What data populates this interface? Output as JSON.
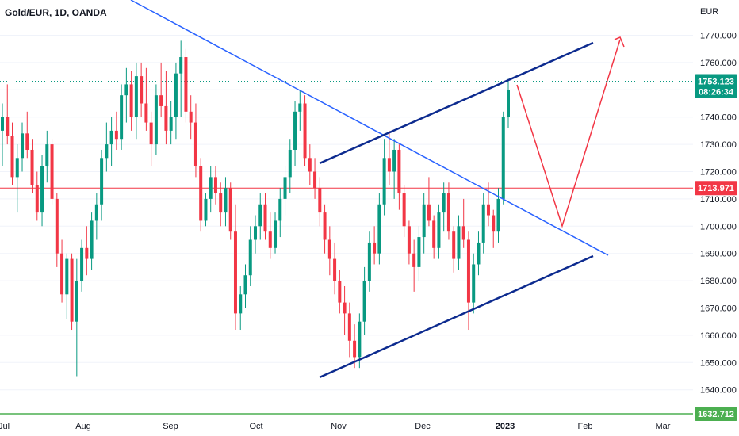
{
  "symbol_title": "Gold/EUR, 1D, OANDA",
  "currency": "EUR",
  "colors": {
    "up": "#089981",
    "down": "#f23645",
    "trendline": "#0d2b8f",
    "trendline_light": "#2962ff",
    "projection": "#f23645",
    "current_price_line": "#089981",
    "support_line": "#f23645",
    "bottom_line": "#4caf50",
    "text": "#131722",
    "grid": "#f0f3fa"
  },
  "price_tags": {
    "current_price": "1753.123",
    "countdown": "08:26:34",
    "support_price": "1713.971",
    "bottom_price": "1632.712"
  },
  "chart_data": {
    "type": "candlestick",
    "title": "Gold/EUR, 1D, OANDA",
    "ylabel": "EUR",
    "ylim": [
      1636,
      1779
    ],
    "y_ticks": [
      "1640.000",
      "1650.000",
      "1660.000",
      "1670.000",
      "1680.000",
      "1690.000",
      "1700.000",
      "1710.000",
      "1720.000",
      "1730.000",
      "1740.000",
      "1750.000",
      "1760.000",
      "1770.000"
    ],
    "x_ticks": [
      "Jul",
      "Aug",
      "Sep",
      "Oct",
      "Nov",
      "Dec",
      "2023",
      "Feb",
      "Mar"
    ],
    "current_price": 1753.123,
    "horizontal_lines": [
      {
        "label": "1713.971",
        "value": 1713.971
      },
      {
        "label": "1632.712",
        "value": 1632.712
      }
    ],
    "candles": [
      [
        1735,
        1745,
        1722,
        1740
      ],
      [
        1740,
        1752,
        1730,
        1733
      ],
      [
        1733,
        1738,
        1715,
        1718
      ],
      [
        1718,
        1730,
        1705,
        1725
      ],
      [
        1725,
        1738,
        1720,
        1734
      ],
      [
        1734,
        1742,
        1725,
        1728
      ],
      [
        1728,
        1732,
        1712,
        1715
      ],
      [
        1715,
        1720,
        1702,
        1705
      ],
      [
        1705,
        1726,
        1700,
        1722
      ],
      [
        1722,
        1735,
        1716,
        1730
      ],
      [
        1730,
        1732,
        1708,
        1710
      ],
      [
        1710,
        1712,
        1685,
        1690
      ],
      [
        1690,
        1695,
        1672,
        1675
      ],
      [
        1675,
        1690,
        1666,
        1688
      ],
      [
        1688,
        1690,
        1662,
        1665
      ],
      [
        1665,
        1688,
        1645,
        1680
      ],
      [
        1680,
        1695,
        1676,
        1692
      ],
      [
        1692,
        1700,
        1682,
        1688
      ],
      [
        1688,
        1705,
        1684,
        1702
      ],
      [
        1702,
        1712,
        1695,
        1708
      ],
      [
        1708,
        1728,
        1702,
        1725
      ],
      [
        1725,
        1738,
        1720,
        1730
      ],
      [
        1730,
        1740,
        1722,
        1735
      ],
      [
        1735,
        1742,
        1728,
        1732
      ],
      [
        1732,
        1752,
        1728,
        1748
      ],
      [
        1748,
        1758,
        1738,
        1752
      ],
      [
        1752,
        1757,
        1735,
        1740
      ],
      [
        1740,
        1760,
        1732,
        1755
      ],
      [
        1755,
        1760,
        1740,
        1745
      ],
      [
        1745,
        1758,
        1735,
        1738
      ],
      [
        1738,
        1742,
        1722,
        1730
      ],
      [
        1730,
        1752,
        1726,
        1748
      ],
      [
        1748,
        1760,
        1740,
        1744
      ],
      [
        1744,
        1757,
        1730,
        1735
      ],
      [
        1735,
        1746,
        1730,
        1740
      ],
      [
        1740,
        1760,
        1732,
        1756
      ],
      [
        1756,
        1768,
        1740,
        1762
      ],
      [
        1762,
        1765,
        1738,
        1742
      ],
      [
        1742,
        1748,
        1732,
        1738
      ],
      [
        1738,
        1745,
        1718,
        1722
      ],
      [
        1722,
        1725,
        1698,
        1702
      ],
      [
        1702,
        1712,
        1700,
        1710
      ],
      [
        1710,
        1722,
        1705,
        1718
      ],
      [
        1718,
        1722,
        1708,
        1712
      ],
      [
        1712,
        1716,
        1700,
        1705
      ],
      [
        1705,
        1718,
        1700,
        1714
      ],
      [
        1714,
        1716,
        1695,
        1698
      ],
      [
        1698,
        1708,
        1662,
        1668
      ],
      [
        1668,
        1678,
        1662,
        1675
      ],
      [
        1675,
        1686,
        1670,
        1682
      ],
      [
        1682,
        1700,
        1678,
        1695
      ],
      [
        1695,
        1704,
        1690,
        1700
      ],
      [
        1700,
        1712,
        1695,
        1708
      ],
      [
        1708,
        1712,
        1695,
        1698
      ],
      [
        1698,
        1705,
        1688,
        1692
      ],
      [
        1692,
        1705,
        1690,
        1702
      ],
      [
        1702,
        1714,
        1696,
        1710
      ],
      [
        1710,
        1722,
        1704,
        1718
      ],
      [
        1718,
        1732,
        1712,
        1728
      ],
      [
        1728,
        1746,
        1722,
        1742
      ],
      [
        1742,
        1750,
        1735,
        1745
      ],
      [
        1745,
        1748,
        1722,
        1725
      ],
      [
        1725,
        1730,
        1715,
        1720
      ],
      [
        1720,
        1725,
        1710,
        1714
      ],
      [
        1714,
        1718,
        1700,
        1705
      ],
      [
        1705,
        1708,
        1690,
        1695
      ],
      [
        1695,
        1700,
        1682,
        1688
      ],
      [
        1688,
        1694,
        1675,
        1680
      ],
      [
        1680,
        1684,
        1668,
        1672
      ],
      [
        1672,
        1678,
        1660,
        1668
      ],
      [
        1668,
        1672,
        1652,
        1658
      ],
      [
        1658,
        1664,
        1648,
        1652
      ],
      [
        1652,
        1668,
        1648,
        1665
      ],
      [
        1665,
        1685,
        1660,
        1680
      ],
      [
        1680,
        1698,
        1676,
        1694
      ],
      [
        1694,
        1700,
        1686,
        1690
      ],
      [
        1690,
        1712,
        1686,
        1708
      ],
      [
        1708,
        1732,
        1704,
        1725
      ],
      [
        1725,
        1735,
        1715,
        1720
      ],
      [
        1720,
        1732,
        1710,
        1728
      ],
      [
        1728,
        1730,
        1706,
        1712
      ],
      [
        1712,
        1715,
        1696,
        1700
      ],
      [
        1700,
        1702,
        1686,
        1690
      ],
      [
        1690,
        1695,
        1676,
        1685
      ],
      [
        1685,
        1700,
        1680,
        1696
      ],
      [
        1696,
        1712,
        1690,
        1708
      ],
      [
        1708,
        1718,
        1700,
        1702
      ],
      [
        1702,
        1704,
        1688,
        1692
      ],
      [
        1692,
        1708,
        1688,
        1705
      ],
      [
        1705,
        1716,
        1698,
        1712
      ],
      [
        1712,
        1716,
        1695,
        1698
      ],
      [
        1698,
        1700,
        1683,
        1688
      ],
      [
        1688,
        1704,
        1684,
        1700
      ],
      [
        1700,
        1710,
        1692,
        1695
      ],
      [
        1695,
        1698,
        1662,
        1672
      ],
      [
        1672,
        1690,
        1668,
        1686
      ],
      [
        1686,
        1698,
        1682,
        1694
      ],
      [
        1694,
        1712,
        1690,
        1708
      ],
      [
        1708,
        1716,
        1700,
        1704
      ],
      [
        1704,
        1706,
        1692,
        1698
      ],
      [
        1698,
        1714,
        1694,
        1710
      ],
      [
        1710,
        1742,
        1708,
        1740
      ],
      [
        1740,
        1754,
        1736,
        1750
      ]
    ]
  }
}
